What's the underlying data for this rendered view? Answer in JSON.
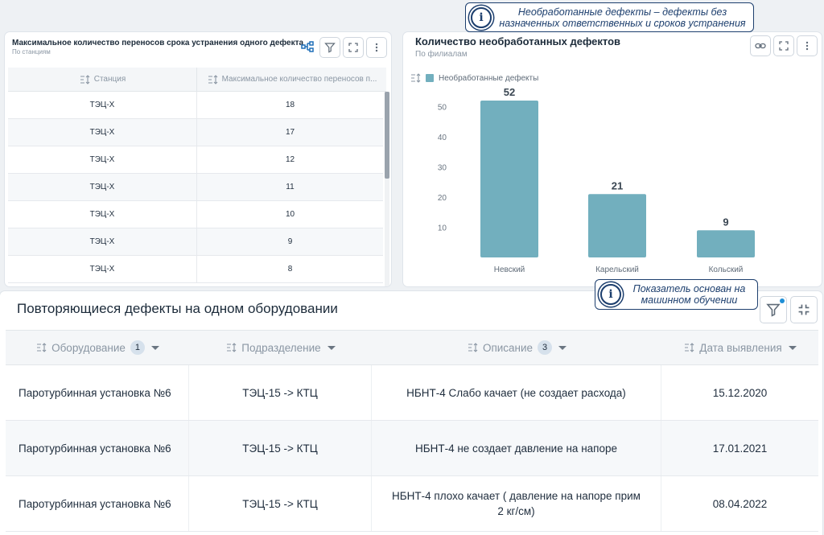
{
  "left_card": {
    "title": "Максимальное количество переносов срока устранения одного дефекта",
    "subtitle": "По станциям",
    "columns": [
      "Станция",
      "Максимальное количество переносов п..."
    ],
    "rows": [
      {
        "station": "ТЭЦ-Х",
        "value": "18"
      },
      {
        "station": "ТЭЦ-Х",
        "value": "17"
      },
      {
        "station": "ТЭЦ-Х",
        "value": "12"
      },
      {
        "station": "ТЭЦ-Х",
        "value": "11"
      },
      {
        "station": "ТЭЦ-Х",
        "value": "10"
      },
      {
        "station": "ТЭЦ-Х",
        "value": "9"
      },
      {
        "station": "ТЭЦ-Х",
        "value": "8"
      }
    ]
  },
  "chart_card": {
    "title": "Количество необработанных дефектов",
    "subtitle": "По филиалам"
  },
  "chart_data": {
    "type": "bar",
    "categories": [
      "Невский",
      "Карельский",
      "Кольский"
    ],
    "series": [
      {
        "name": "Необработанные дефекты",
        "values": [
          52,
          21,
          9
        ]
      }
    ],
    "yticks": [
      10,
      20,
      30,
      40,
      50
    ],
    "ylim": [
      0,
      56
    ],
    "data_labels": [
      "52",
      "21",
      "9"
    ],
    "bar_color": "#72afbe",
    "legend": "top-left",
    "grid": false
  },
  "callouts": {
    "top": "Необработанные дефекты – дефекты без назначенных ответственных и сроков устранения",
    "bottom": "Показатель основан на машинном обучении"
  },
  "bottom_card": {
    "title": "Повторяющиеся дефекты на одном оборудовании",
    "columns": [
      {
        "label": "Оборудование",
        "badge": "1"
      },
      {
        "label": "Подразделение",
        "badge": ""
      },
      {
        "label": "Описание",
        "badge": "3"
      },
      {
        "label": "Дата выявления",
        "badge": ""
      }
    ],
    "rows": [
      {
        "equipment": "Паротурбинная установка №6",
        "division": "ТЭЦ-15 -> КТЦ",
        "description": "НБНТ-4 Слабо качает (не создает расхода)",
        "date": "15.12.2020"
      },
      {
        "equipment": "Паротурбинная установка №6",
        "division": "ТЭЦ-15 -> КТЦ",
        "description": "НБНТ-4 не создает давление на напоре",
        "date": "17.01.2021"
      },
      {
        "equipment": "Паротурбинная установка №6",
        "division": "ТЭЦ-15 -> КТЦ",
        "description": "НБНТ-4 плохо качает ( давление на напоре прим 2 кг/см)",
        "date": "08.04.2022"
      }
    ]
  },
  "icons": {
    "tree": "tree-icon",
    "filter": "filter-icon",
    "expand": "expand-icon",
    "more": "more-vertical-icon",
    "link": "link-icon",
    "collapse": "collapse-icon",
    "sort": "sort-icon",
    "info": "info-icon"
  },
  "colors": {
    "accent": "#1d3f6e",
    "bar": "#72afbe",
    "filter_dot": "#1f8fd6"
  }
}
